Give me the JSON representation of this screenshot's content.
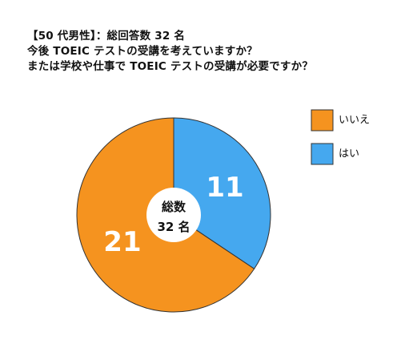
{
  "chart_data": {
    "type": "pie",
    "title": [
      "【50 代男性】：総回答数 32 名",
      "今後 TOEIC テストの受講を考えていますか？",
      "または学校や仕事で TOEIC テストの受講が必要ですか？"
    ],
    "slices": [
      {
        "label": "はい",
        "value": 11,
        "color": "#45A8EF"
      },
      {
        "label": "いいえ",
        "value": 21,
        "color": "#F5931F"
      }
    ],
    "legend": {
      "placement": "right",
      "order": [
        "いいえ",
        "はい"
      ]
    },
    "center_label": [
      "総数",
      "32 名"
    ],
    "outline_color": "#333333"
  }
}
